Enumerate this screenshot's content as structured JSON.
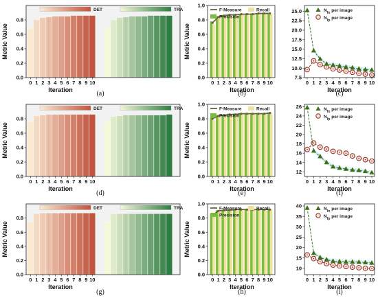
{
  "colors": {
    "det_light": "#fbe9d2",
    "det_dark": "#c2543e",
    "tra_light": "#f4f7d8",
    "tra_dark": "#2e7d43",
    "fmeasure_line": "#6b6241",
    "precision_bar": "#7cbd3d",
    "recall_bar": "#efe29e",
    "fn_color": "#3f6e1a",
    "fp_color": "#8b2a1f"
  },
  "chart_data": [
    {
      "type": "bar",
      "panel_label": "(a)",
      "xlabel": "Iteration",
      "ylabel": "Metric Value",
      "ylim": [
        0,
        1.0
      ],
      "yticks": [
        "0.0",
        "0.2",
        "0.4",
        "0.6",
        "0.8"
      ],
      "categories": [
        "0",
        "1",
        "2",
        "3",
        "4",
        "5",
        "6",
        "7",
        "8",
        "9",
        "10"
      ],
      "series": [
        {
          "name": "DET",
          "values": [
            0.68,
            0.8,
            0.83,
            0.84,
            0.85,
            0.85,
            0.85,
            0.86,
            0.86,
            0.86,
            0.86
          ]
        },
        {
          "name": "TRA",
          "values": [
            0.68,
            0.8,
            0.83,
            0.84,
            0.85,
            0.85,
            0.85,
            0.86,
            0.86,
            0.86,
            0.86
          ]
        }
      ]
    },
    {
      "type": "bar",
      "panel_label": "(b)",
      "xlabel": "Iteration",
      "ylabel": "Metric Value",
      "ylim": [
        0,
        1.0
      ],
      "yticks": [
        "0.0",
        "0.2",
        "0.4",
        "0.6",
        "0.8",
        "1.0"
      ],
      "categories": [
        "0",
        "1",
        "2",
        "3",
        "4",
        "5",
        "6",
        "7",
        "8",
        "9",
        "10"
      ],
      "series": [
        {
          "name": "F-Measure",
          "values": [
            0.76,
            0.84,
            0.86,
            0.87,
            0.87,
            0.88,
            0.88,
            0.88,
            0.89,
            0.89,
            0.89
          ]
        },
        {
          "name": "Recall",
          "values": [
            0.74,
            0.83,
            0.85,
            0.86,
            0.86,
            0.87,
            0.87,
            0.88,
            0.88,
            0.88,
            0.88
          ]
        },
        {
          "name": "Precision",
          "values": [
            0.78,
            0.85,
            0.87,
            0.88,
            0.88,
            0.88,
            0.89,
            0.89,
            0.89,
            0.9,
            0.9
          ]
        }
      ]
    },
    {
      "type": "line",
      "panel_label": "(c)",
      "xlabel": "Iteration",
      "ylabel": "",
      "ylim": [
        7.5,
        26.5
      ],
      "yticks": [
        "7.5",
        "10.0",
        "12.5",
        "15.0",
        "17.5",
        "20.0",
        "22.5",
        "25.0"
      ],
      "x": [
        "0",
        "1",
        "2",
        "3",
        "4",
        "5",
        "6",
        "7",
        "8",
        "9",
        "10"
      ],
      "series": [
        {
          "name": "N_fn per image",
          "values": [
            25.2,
            14.6,
            12.4,
            11.1,
            10.8,
            10.6,
            10.3,
            10.1,
            9.8,
            9.6,
            9.5
          ]
        },
        {
          "name": "N_fp per image",
          "values": [
            9.6,
            11.9,
            10.9,
            10.3,
            9.8,
            9.5,
            9.2,
            8.9,
            8.6,
            8.4,
            8.2
          ]
        }
      ]
    },
    {
      "type": "bar",
      "panel_label": "(d)",
      "xlabel": "Iteration",
      "ylabel": "Metric Value",
      "ylim": [
        0,
        1.0
      ],
      "yticks": [
        "0.0",
        "0.2",
        "0.4",
        "0.6",
        "0.8"
      ],
      "categories": [
        "0",
        "1",
        "2",
        "3",
        "4",
        "5",
        "6",
        "7",
        "8",
        "9",
        "10"
      ],
      "series": [
        {
          "name": "DET",
          "values": [
            0.76,
            0.84,
            0.85,
            0.86,
            0.86,
            0.86,
            0.86,
            0.86,
            0.86,
            0.86,
            0.86
          ]
        },
        {
          "name": "TRA",
          "values": [
            0.76,
            0.83,
            0.84,
            0.85,
            0.85,
            0.85,
            0.85,
            0.85,
            0.85,
            0.85,
            0.86
          ]
        }
      ]
    },
    {
      "type": "bar",
      "panel_label": "(e)",
      "xlabel": "Iteration",
      "ylabel": "Metric Value",
      "ylim": [
        0,
        1.0
      ],
      "yticks": [
        "0.0",
        "0.2",
        "0.4",
        "0.6",
        "0.8",
        "1.0"
      ],
      "categories": [
        "0",
        "1",
        "2",
        "3",
        "4",
        "5",
        "6",
        "7",
        "8",
        "9",
        "10"
      ],
      "series": [
        {
          "name": "F-Measure",
          "values": [
            0.8,
            0.84,
            0.85,
            0.86,
            0.86,
            0.87,
            0.87,
            0.87,
            0.87,
            0.87,
            0.88
          ]
        },
        {
          "name": "Recall",
          "values": [
            0.78,
            0.83,
            0.84,
            0.85,
            0.86,
            0.86,
            0.86,
            0.87,
            0.87,
            0.87,
            0.87
          ]
        },
        {
          "name": "Precision",
          "values": [
            0.82,
            0.85,
            0.86,
            0.87,
            0.87,
            0.88,
            0.88,
            0.88,
            0.88,
            0.88,
            0.89
          ]
        }
      ]
    },
    {
      "type": "line",
      "panel_label": "(f)",
      "xlabel": "Iteration",
      "ylabel": "",
      "ylim": [
        11,
        26.5
      ],
      "yticks": [
        "12",
        "14",
        "16",
        "18",
        "20",
        "22",
        "24",
        "26"
      ],
      "x": [
        "0",
        "1",
        "2",
        "3",
        "4",
        "5",
        "6",
        "7",
        "8",
        "9",
        "10"
      ],
      "series": [
        {
          "name": "N_fn per image",
          "values": [
            25.8,
            16.5,
            15.3,
            14.0,
            13.1,
            12.8,
            12.6,
            12.4,
            12.3,
            12.1,
            11.8
          ]
        },
        {
          "name": "N_fp per image",
          "values": [
            16.8,
            18.2,
            17.3,
            16.9,
            16.4,
            16.2,
            16.0,
            15.4,
            14.9,
            14.6,
            14.3
          ]
        }
      ]
    },
    {
      "type": "bar",
      "panel_label": "(g)",
      "xlabel": "Iteration",
      "ylabel": "Metric Value",
      "ylim": [
        0,
        1.0
      ],
      "yticks": [
        "0.0",
        "0.2",
        "0.4",
        "0.6",
        "0.8"
      ],
      "categories": [
        "0",
        "1",
        "2",
        "3",
        "4",
        "5",
        "6",
        "7",
        "8",
        "9",
        "10"
      ],
      "series": [
        {
          "name": "DET",
          "values": [
            0.74,
            0.86,
            0.87,
            0.87,
            0.87,
            0.87,
            0.87,
            0.87,
            0.87,
            0.87,
            0.87
          ]
        },
        {
          "name": "TRA",
          "values": [
            0.74,
            0.86,
            0.86,
            0.86,
            0.86,
            0.86,
            0.86,
            0.86,
            0.86,
            0.86,
            0.86
          ]
        }
      ]
    },
    {
      "type": "bar",
      "panel_label": "(h)",
      "xlabel": "Iteration",
      "ylabel": "Metric Value",
      "ylim": [
        0,
        1.0
      ],
      "yticks": [
        "0.0",
        "0.2",
        "0.4",
        "0.6",
        "0.8",
        "1.0"
      ],
      "categories": [
        "0",
        "1",
        "2",
        "3",
        "4",
        "5",
        "6",
        "7",
        "8",
        "9",
        "10"
      ],
      "series": [
        {
          "name": "F-Measure",
          "values": [
            0.84,
            0.9,
            0.91,
            0.91,
            0.92,
            0.92,
            0.92,
            0.92,
            0.92,
            0.92,
            0.92
          ]
        },
        {
          "name": "Recall",
          "values": [
            0.82,
            0.89,
            0.9,
            0.91,
            0.91,
            0.91,
            0.92,
            0.92,
            0.92,
            0.92,
            0.92
          ]
        },
        {
          "name": "Precision",
          "values": [
            0.86,
            0.91,
            0.92,
            0.92,
            0.92,
            0.93,
            0.93,
            0.93,
            0.93,
            0.93,
            0.93
          ]
        }
      ]
    },
    {
      "type": "line",
      "panel_label": "(i)",
      "xlabel": "Iteration",
      "ylabel": "",
      "ylim": [
        7,
        41
      ],
      "yticks": [
        "10",
        "15",
        "20",
        "25",
        "30",
        "35",
        "40"
      ],
      "x": [
        "0",
        "1",
        "2",
        "3",
        "4",
        "5",
        "6",
        "7",
        "8",
        "9",
        "10"
      ],
      "series": [
        {
          "name": "N_fn per image",
          "values": [
            39.0,
            17.3,
            15.2,
            14.2,
            13.5,
            13.3,
            13.2,
            13.1,
            13.0,
            12.8,
            12.6
          ]
        },
        {
          "name": "N_fp per image",
          "values": [
            16.5,
            14.7,
            13.2,
            12.3,
            11.6,
            11.2,
            10.9,
            10.6,
            10.3,
            10.0,
            9.9
          ]
        }
      ]
    }
  ]
}
